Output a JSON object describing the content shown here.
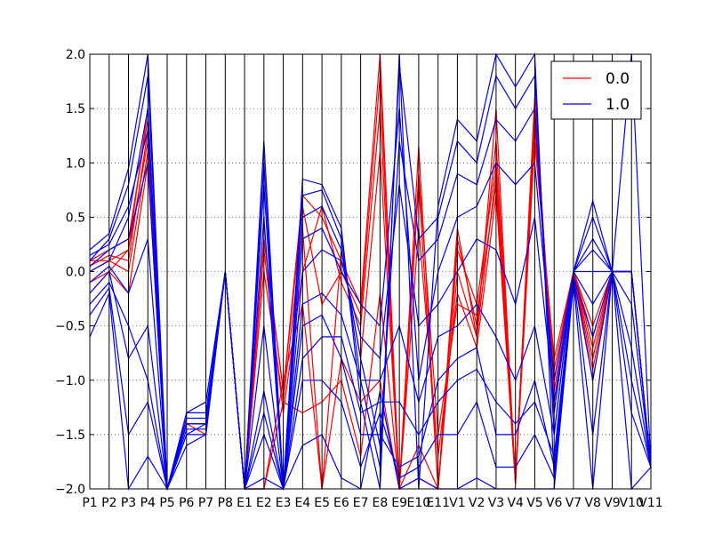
{
  "chart_data": {
    "type": "line",
    "subtype": "parallel-coordinates",
    "title": "",
    "xlabel": "",
    "ylabel": "",
    "x": [
      "P1",
      "P2",
      "P3",
      "P4",
      "P5",
      "P6",
      "P7",
      "P8",
      "E1",
      "E2",
      "E3",
      "E4",
      "E5",
      "E6",
      "E7",
      "E8",
      "E9",
      "E10",
      "E11",
      "V1",
      "V2",
      "V3",
      "V4",
      "V5",
      "V6",
      "V7",
      "V8",
      "V9",
      "V10",
      "V11"
    ],
    "ylim": [
      -2.0,
      2.0
    ],
    "yticks": [
      -2.0,
      -1.5,
      -1.0,
      -0.5,
      0.0,
      0.5,
      1.0,
      1.5,
      2.0
    ],
    "ytick_labels": [
      "−2.0",
      "−1.5",
      "−1.0",
      "−0.5",
      "0.0",
      "0.5",
      "1.0",
      "1.5",
      "2.0"
    ],
    "grid": "horizontal dotted",
    "legend_position": "top-right",
    "series": [
      {
        "name": "0.0",
        "color": "#ff0000",
        "lines": [
          [
            0.1,
            0.2,
            0.3,
            1.4,
            -2.0,
            -1.4,
            -1.4,
            0.0,
            -2.0,
            0.3,
            -1.1,
            0.7,
            0.5,
            0.1,
            -0.3,
            2.0,
            -2.0,
            1.15,
            -2.0,
            0.4,
            -0.6,
            1.5,
            -1.95,
            1.6,
            -1.2,
            0.0,
            -0.7,
            0.0,
            0.0,
            -1.8
          ],
          [
            0.0,
            0.1,
            0.2,
            1.2,
            -2.0,
            -1.4,
            -1.5,
            0.0,
            -2.0,
            0.2,
            -1.3,
            0.0,
            0.6,
            -0.1,
            -0.5,
            1.5,
            -2.0,
            0.8,
            -2.0,
            0.2,
            -0.3,
            1.0,
            -1.9,
            1.4,
            -1.0,
            0.0,
            -0.5,
            0.0,
            0.0,
            -1.8
          ],
          [
            -0.1,
            0.0,
            -0.2,
            1.0,
            -2.0,
            -1.4,
            -1.4,
            0.0,
            -2.0,
            -2.0,
            -1.0,
            -0.3,
            -2.0,
            0.2,
            -0.8,
            1.1,
            -2.0,
            0.4,
            -1.7,
            -0.2,
            -0.7,
            0.7,
            -1.95,
            1.2,
            -0.8,
            0.0,
            -0.9,
            0.0,
            0.0,
            -1.8
          ],
          [
            0.05,
            0.15,
            0.1,
            1.3,
            -2.0,
            -1.4,
            -1.4,
            0.0,
            -2.0,
            -2.0,
            -1.2,
            -1.3,
            -1.2,
            -1.0,
            -1.7,
            -0.2,
            -2.0,
            -1.9,
            -2.0,
            0.0,
            -0.6,
            0.9,
            -1.95,
            1.5,
            -1.3,
            0.0,
            -0.8,
            0.0,
            0.0,
            -1.8
          ],
          [
            0.1,
            0.1,
            0.0,
            1.1,
            -2.0,
            -1.4,
            -1.4,
            0.0,
            -2.0,
            0.3,
            -1.1,
            0.6,
            -0.3,
            0.0,
            -0.4,
            1.8,
            -2.0,
            -1.6,
            -2.0,
            0.3,
            -0.5,
            1.2,
            -1.9,
            1.3,
            -0.9,
            0.0,
            -0.6,
            0.0,
            0.0,
            -1.8
          ],
          [
            -0.2,
            0.0,
            0.2,
            1.5,
            -2.0,
            -1.4,
            -1.4,
            0.0,
            -2.0,
            0.0,
            -1.2,
            0.4,
            -2.0,
            -0.8,
            -1.2,
            -1.0,
            -2.0,
            0.9,
            -1.5,
            -0.3,
            -0.4,
            0.8,
            -1.95,
            1.6,
            -1.1,
            0.0,
            -1.0,
            0.0,
            0.0,
            -1.8
          ]
        ]
      },
      {
        "name": "1.0",
        "color": "#0000ff",
        "lines": [
          [
            0.2,
            0.35,
            0.95,
            2.0,
            -2.0,
            -1.3,
            -1.2,
            0.0,
            -2.0,
            1.2,
            -2.0,
            0.85,
            0.8,
            0.4,
            -1.2,
            -2.0,
            2.0,
            -2.0,
            0.6,
            1.4,
            1.2,
            2.0,
            1.7,
            2.0,
            -1.9,
            0.0,
            0.65,
            0.0,
            2.0,
            -1.8
          ],
          [
            -0.6,
            -0.2,
            -2.0,
            -1.7,
            -2.0,
            -1.6,
            -1.5,
            0.0,
            -2.0,
            -2.0,
            -2.0,
            -1.6,
            -1.5,
            -1.9,
            -2.0,
            -1.1,
            -2.0,
            -1.9,
            -2.0,
            -2.0,
            -1.9,
            -2.0,
            -2.0,
            -2.0,
            -2.0,
            -0.1,
            -2.0,
            0.0,
            -2.0,
            -1.8
          ],
          [
            0.0,
            0.1,
            0.5,
            1.5,
            -2.0,
            -1.4,
            -1.4,
            0.0,
            -2.0,
            0.5,
            -2.0,
            0.3,
            0.4,
            0.0,
            -0.3,
            -0.5,
            1.5,
            -1.0,
            0.0,
            0.5,
            0.6,
            1.0,
            0.8,
            1.0,
            -1.0,
            0.0,
            0.2,
            0.0,
            0.0,
            -1.8
          ],
          [
            -0.3,
            -0.1,
            -0.5,
            -1.0,
            -2.0,
            -1.5,
            -1.4,
            0.0,
            -2.0,
            -1.1,
            -2.0,
            -0.5,
            -0.4,
            -0.8,
            -1.5,
            -1.5,
            -1.8,
            -1.7,
            -1.0,
            -0.8,
            -0.7,
            -1.5,
            -1.5,
            -1.0,
            -1.8,
            -0.05,
            -0.6,
            0.0,
            -0.7,
            -1.8
          ],
          [
            0.1,
            0.3,
            0.8,
            1.8,
            -2.0,
            -1.3,
            -1.3,
            0.0,
            -2.0,
            1.0,
            -2.0,
            0.7,
            0.75,
            0.3,
            -1.0,
            -1.8,
            1.9,
            0.3,
            0.5,
            1.2,
            1.0,
            1.8,
            1.5,
            1.8,
            -1.5,
            0.0,
            0.5,
            0.0,
            0.0,
            -1.8
          ],
          [
            -0.4,
            -0.15,
            -1.5,
            -1.2,
            -2.0,
            -1.5,
            -1.5,
            0.0,
            -2.0,
            -1.5,
            -2.0,
            -1.0,
            -1.0,
            -1.2,
            -1.8,
            -1.3,
            -1.9,
            -1.8,
            -1.5,
            -1.5,
            -1.2,
            -1.8,
            -1.8,
            -1.5,
            -1.9,
            -0.05,
            -1.5,
            0.0,
            -1.3,
            -1.8
          ],
          [
            0.05,
            0.2,
            0.3,
            1.0,
            -2.0,
            -1.4,
            -1.4,
            0.0,
            -2.0,
            -0.5,
            -2.0,
            0.0,
            0.2,
            0.1,
            -0.6,
            -0.8,
            0.8,
            -0.5,
            -0.3,
            0.0,
            0.3,
            0.2,
            -0.3,
            0.5,
            -1.2,
            0.0,
            0.0,
            0.0,
            0.0,
            -1.8
          ],
          [
            -0.1,
            0.05,
            -0.2,
            0.3,
            -2.0,
            -1.4,
            -1.4,
            0.0,
            -2.0,
            -1.9,
            -2.0,
            -0.3,
            -0.2,
            -0.4,
            -1.0,
            -1.0,
            -0.5,
            -1.2,
            -0.6,
            -0.5,
            -0.3,
            -0.6,
            -1.0,
            -0.5,
            -1.5,
            0.0,
            -0.3,
            0.0,
            -0.3,
            -1.8
          ],
          [
            0.15,
            0.25,
            0.6,
            1.3,
            -2.0,
            -1.35,
            -1.35,
            0.0,
            -2.0,
            0.8,
            -2.0,
            0.5,
            0.6,
            0.2,
            -0.8,
            -1.6,
            1.2,
            0.1,
            0.3,
            0.9,
            0.8,
            1.4,
            1.2,
            1.5,
            -1.3,
            0.0,
            0.3,
            0.0,
            0.0,
            -1.8
          ],
          [
            -0.2,
            0.0,
            -0.8,
            -0.5,
            -2.0,
            -1.45,
            -1.45,
            0.0,
            -2.0,
            -1.3,
            -2.0,
            -0.8,
            -0.6,
            -0.6,
            -1.3,
            -1.2,
            -1.2,
            -1.5,
            -1.2,
            -1.0,
            -0.9,
            -1.2,
            -1.4,
            -1.2,
            -1.7,
            -0.05,
            -1.0,
            0.0,
            -1.0,
            -1.8
          ]
        ]
      }
    ]
  },
  "legend": {
    "items": [
      {
        "label": "0.0",
        "color": "#ff0000"
      },
      {
        "label": "1.0",
        "color": "#0000ff"
      }
    ]
  }
}
